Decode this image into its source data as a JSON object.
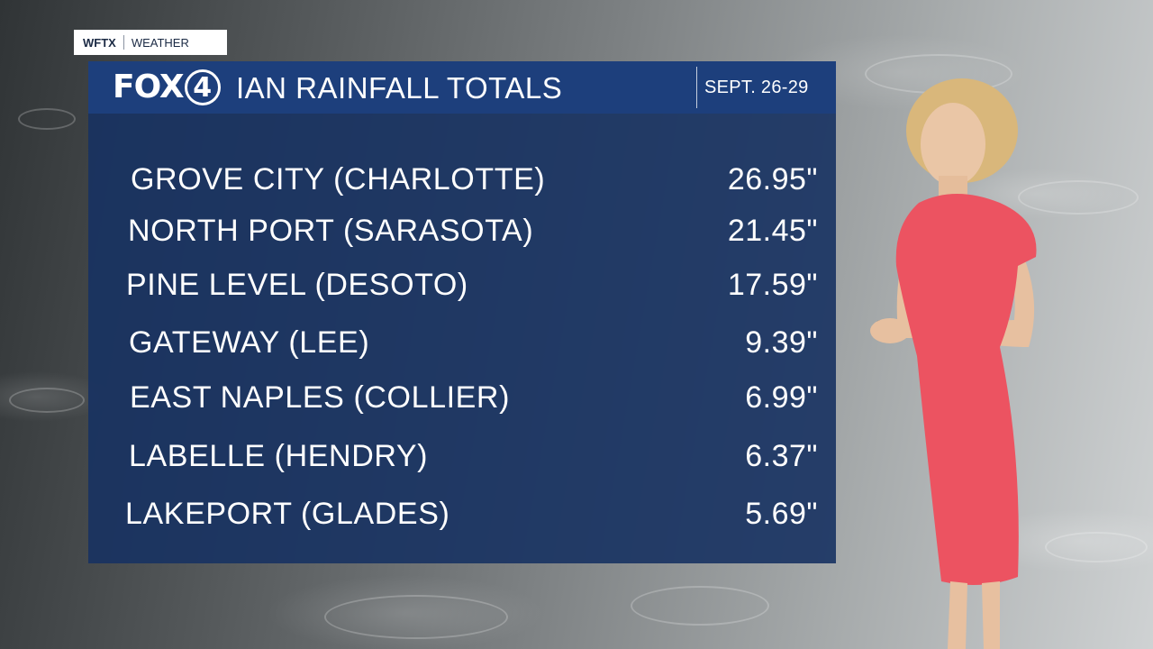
{
  "network_bug": {
    "call_sign": "WFTX",
    "section": "WEATHER"
  },
  "logo": {
    "text": "FOX",
    "number": "4"
  },
  "header": {
    "title": "IAN RAINFALL TOTALS",
    "dates": "SEPT. 26-29"
  },
  "rows": [
    {
      "place": "GROVE CITY (CHARLOTTE)",
      "amount": "26.95\""
    },
    {
      "place": "NORTH PORT (SARASOTA)",
      "amount": "21.45\""
    },
    {
      "place": "PINE LEVEL (DESOTO)",
      "amount": "17.59\""
    },
    {
      "place": "GATEWAY (LEE)",
      "amount": "9.39\""
    },
    {
      "place": "EAST NAPLES (COLLIER)",
      "amount": "6.99\""
    },
    {
      "place": "LABELLE (HENDRY)",
      "amount": "6.37\""
    },
    {
      "place": "LAKEPORT (GLADES)",
      "amount": "5.69\""
    }
  ],
  "colors": {
    "panel": "#173262",
    "header": "#1d3f7c",
    "dress": "#ec5361"
  }
}
